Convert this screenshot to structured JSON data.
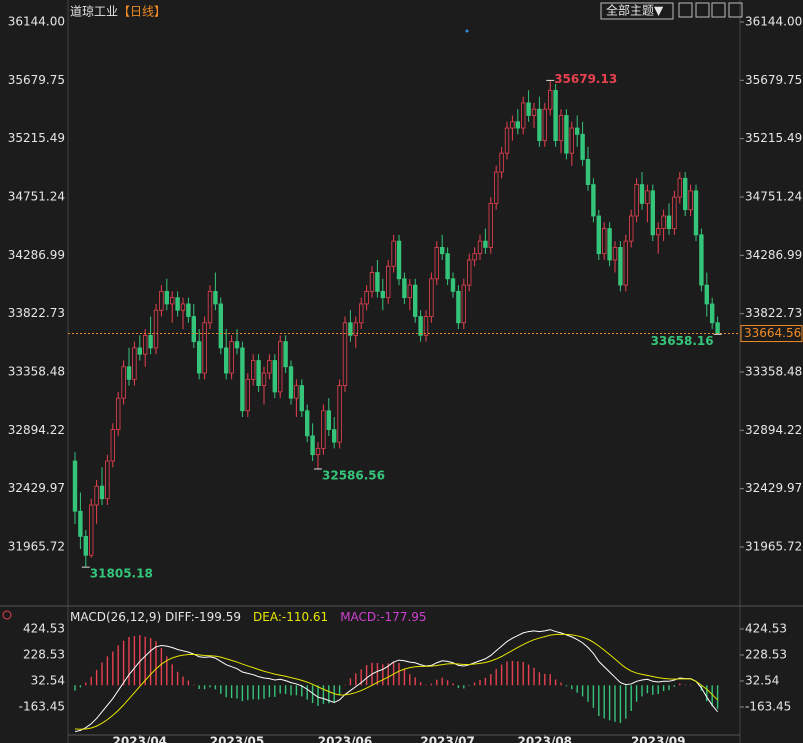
{
  "header": {
    "title": "道琼工业",
    "period": "【日线】",
    "theme_button": "全部主题▼"
  },
  "chart_data": [
    {
      "type": "candlestick",
      "up_color": "#e8414f",
      "down_color": "#35c57a",
      "candles": [
        [
          32650,
          32720,
          32150,
          32250
        ],
        [
          32250,
          32400,
          31950,
          32050
        ],
        [
          32050,
          32100,
          31805.18,
          31900
        ],
        [
          31900,
          32350,
          31880,
          32300
        ],
        [
          32300,
          32500,
          32150,
          32450
        ],
        [
          32450,
          32600,
          32300,
          32350
        ],
        [
          32350,
          32700,
          32300,
          32650
        ],
        [
          32650,
          32950,
          32600,
          32900
        ],
        [
          32900,
          33200,
          32850,
          33150
        ],
        [
          33150,
          33450,
          33100,
          33400
        ],
        [
          33400,
          33550,
          33250,
          33300
        ],
        [
          33300,
          33600,
          33250,
          33550
        ],
        [
          33550,
          33650,
          33450,
          33500
        ],
        [
          33500,
          33700,
          33400,
          33650
        ],
        [
          33650,
          33800,
          33500,
          33550
        ],
        [
          33550,
          33900,
          33500,
          33850
        ],
        [
          33850,
          34050,
          33800,
          34000
        ],
        [
          34000,
          34100,
          33850,
          33900
        ],
        [
          33900,
          34000,
          33750,
          33950
        ],
        [
          33950,
          34000,
          33800,
          33850
        ],
        [
          33850,
          33950,
          33700,
          33900
        ],
        [
          33900,
          33950,
          33750,
          33800
        ],
        [
          33800,
          33900,
          33550,
          33600
        ],
        [
          33600,
          33700,
          33300,
          33350
        ],
        [
          33350,
          33800,
          33300,
          33750
        ],
        [
          33750,
          34050,
          33700,
          34000
        ],
        [
          34000,
          34150,
          33850,
          33900
        ],
        [
          33900,
          33950,
          33500,
          33550
        ],
        [
          33550,
          33700,
          33300,
          33350
        ],
        [
          33350,
          33650,
          33300,
          33600
        ],
        [
          33600,
          33700,
          33500,
          33550
        ],
        [
          33550,
          33600,
          33000,
          33050
        ],
        [
          33050,
          33350,
          33000,
          33300
        ],
        [
          33300,
          33500,
          33250,
          33450
        ],
        [
          33450,
          33500,
          33200,
          33250
        ],
        [
          33250,
          33400,
          33100,
          33350
        ],
        [
          33350,
          33500,
          33300,
          33450
        ],
        [
          33450,
          33500,
          33150,
          33200
        ],
        [
          33200,
          33650,
          33150,
          33600
        ],
        [
          33600,
          33650,
          33350,
          33400
        ],
        [
          33400,
          33450,
          33100,
          33150
        ],
        [
          33150,
          33300,
          33000,
          33250
        ],
        [
          33250,
          33300,
          33000,
          33050
        ],
        [
          33050,
          33100,
          32800,
          32850
        ],
        [
          32850,
          32950,
          32650,
          32700
        ],
        [
          32700,
          32800,
          32586.56,
          32750
        ],
        [
          32750,
          33100,
          32700,
          33050
        ],
        [
          33050,
          33150,
          32850,
          32900
        ],
        [
          32900,
          33000,
          32750,
          32800
        ],
        [
          32800,
          33300,
          32750,
          33250
        ],
        [
          33250,
          33800,
          33200,
          33750
        ],
        [
          33750,
          33850,
          33600,
          33650
        ],
        [
          33650,
          33800,
          33550,
          33750
        ],
        [
          33750,
          33950,
          33700,
          33900
        ],
        [
          33900,
          34050,
          33850,
          34000
        ],
        [
          34000,
          34200,
          33950,
          34150
        ],
        [
          34150,
          34250,
          33950,
          34000
        ],
        [
          34000,
          34100,
          33850,
          33950
        ],
        [
          33950,
          34250,
          33900,
          34200
        ],
        [
          34200,
          34450,
          34150,
          34400
        ],
        [
          34400,
          34450,
          34050,
          34100
        ],
        [
          34100,
          34150,
          33900,
          33950
        ],
        [
          33950,
          34100,
          33850,
          34050
        ],
        [
          34050,
          34100,
          33750,
          33800
        ],
        [
          33800,
          33850,
          33600,
          33650
        ],
        [
          33650,
          33850,
          33600,
          33800
        ],
        [
          33800,
          34150,
          33750,
          34100
        ],
        [
          34100,
          34400,
          34050,
          34350
        ],
        [
          34350,
          34450,
          34250,
          34300
        ],
        [
          34300,
          34350,
          34050,
          34100
        ],
        [
          34100,
          34150,
          33950,
          34000
        ],
        [
          34000,
          34050,
          33700,
          33750
        ],
        [
          33750,
          34100,
          33700,
          34050
        ],
        [
          34050,
          34300,
          34000,
          34250
        ],
        [
          34250,
          34350,
          34200,
          34300
        ],
        [
          34300,
          34450,
          34250,
          34400
        ],
        [
          34400,
          34500,
          34300,
          34350
        ],
        [
          34350,
          34750,
          34300,
          34700
        ],
        [
          34700,
          35000,
          34650,
          34950
        ],
        [
          34950,
          35150,
          34900,
          35100
        ],
        [
          35100,
          35350,
          35050,
          35300
        ],
        [
          35300,
          35400,
          35200,
          35350
        ],
        [
          35350,
          35450,
          35250,
          35300
        ],
        [
          35300,
          35550,
          35250,
          35500
        ],
        [
          35500,
          35600,
          35350,
          35400
        ],
        [
          35400,
          35500,
          35300,
          35450
        ],
        [
          35450,
          35550,
          35150,
          35200
        ],
        [
          35200,
          35500,
          35150,
          35450
        ],
        [
          35450,
          35679.13,
          35400,
          35600
        ],
        [
          35600,
          35650,
          35150,
          35200
        ],
        [
          35200,
          35450,
          35100,
          35400
        ],
        [
          35400,
          35450,
          35050,
          35100
        ],
        [
          35100,
          35350,
          35000,
          35300
        ],
        [
          35300,
          35400,
          35150,
          35250
        ],
        [
          35250,
          35350,
          35000,
          35050
        ],
        [
          35050,
          35150,
          34800,
          34850
        ],
        [
          34850,
          34900,
          34550,
          34600
        ],
        [
          34600,
          34650,
          34250,
          34300
        ],
        [
          34300,
          34550,
          34250,
          34500
        ],
        [
          34500,
          34550,
          34200,
          34250
        ],
        [
          34250,
          34400,
          34150,
          34350
        ],
        [
          34350,
          34400,
          34000,
          34050
        ],
        [
          34050,
          34450,
          34000,
          34400
        ],
        [
          34400,
          34650,
          34350,
          34600
        ],
        [
          34600,
          34900,
          34550,
          34850
        ],
        [
          34850,
          34950,
          34650,
          34700
        ],
        [
          34700,
          34850,
          34550,
          34800
        ],
        [
          34800,
          34850,
          34400,
          34450
        ],
        [
          34450,
          34550,
          34300,
          34500
        ],
        [
          34500,
          34650,
          34400,
          34600
        ],
        [
          34600,
          34700,
          34450,
          34500
        ],
        [
          34500,
          34800,
          34450,
          34750
        ],
        [
          34750,
          34950,
          34700,
          34900
        ],
        [
          34900,
          34950,
          34600,
          34650
        ],
        [
          34650,
          34850,
          34600,
          34800
        ],
        [
          34800,
          34850,
          34400,
          34450
        ],
        [
          34450,
          34500,
          34000,
          34050
        ],
        [
          34050,
          34150,
          33800,
          33900
        ],
        [
          33900,
          33950,
          33700,
          33750
        ],
        [
          33750,
          33800,
          33658.16,
          33664.56
        ]
      ],
      "ylim": [
        31504,
        36319
      ],
      "yticks": [
        {
          "value": 36144,
          "label": "36144.00"
        },
        35679.75,
        35215.49,
        34751.24,
        34286.99,
        33822.73,
        33358.48,
        32894.22,
        32429.97,
        31965.72
      ],
      "xticks": [
        {
          "value": 12,
          "label": "2023/04"
        },
        {
          "value": 30,
          "label": "2023/05"
        },
        {
          "value": 50,
          "label": "2023/06"
        },
        {
          "value": 69,
          "label": "2023/07"
        },
        {
          "value": 87,
          "label": "2023/08"
        },
        {
          "value": 108,
          "label": "2023/09"
        }
      ]
    },
    {
      "type": "macd",
      "title": "MACD(26,12,9)",
      "ylim": [
        -375,
        530
      ],
      "yticks": [
        424.53,
        228.53,
        32.54,
        -163.45
      ],
      "series": [
        {
          "name": "DIFF:",
          "color": "#ffffff",
          "values": [
            -350,
            -340,
            -320,
            -290,
            -250,
            -200,
            -150,
            -100,
            -40,
            20,
            80,
            130,
            180,
            220,
            260,
            290,
            300,
            295,
            285,
            270,
            260,
            250,
            235,
            215,
            210,
            215,
            205,
            180,
            155,
            140,
            125,
            100,
            90,
            80,
            65,
            55,
            50,
            40,
            45,
            35,
            20,
            10,
            -5,
            -30,
            -60,
            -90,
            -100,
            -115,
            -130,
            -110,
            -70,
            -40,
            -10,
            20,
            55,
            85,
            105,
            120,
            145,
            175,
            190,
            185,
            175,
            170,
            155,
            145,
            150,
            170,
            185,
            180,
            170,
            150,
            145,
            155,
            170,
            185,
            200,
            225,
            260,
            295,
            330,
            355,
            375,
            395,
            405,
            410,
            405,
            410,
            420,
            405,
            395,
            380,
            365,
            345,
            320,
            285,
            240,
            180,
            140,
            100,
            60,
            20,
            5,
            10,
            30,
            40,
            45,
            30,
            25,
            30,
            30,
            40,
            55,
            50,
            50,
            30,
            -20,
            -90,
            -150,
            -199.59
          ]
        },
        {
          "name": "DEA:",
          "color": "#e6e600",
          "values": [
            -330,
            -332,
            -330,
            -322,
            -308,
            -286,
            -259,
            -227,
            -190,
            -148,
            -102,
            -56,
            -9,
            37,
            82,
            124,
            159,
            186,
            206,
            219,
            227,
            232,
            233,
            229,
            225,
            223,
            220,
            212,
            200,
            188,
            175,
            160,
            146,
            133,
            119,
            106,
            95,
            84,
            76,
            68,
            58,
            48,
            37,
            24,
            7,
            -12,
            -30,
            -47,
            -64,
            -73,
            -72,
            -66,
            -55,
            -40,
            -21,
            0,
            21,
            41,
            62,
            85,
            106,
            122,
            133,
            140,
            143,
            143,
            144,
            149,
            156,
            161,
            163,
            160,
            157,
            157,
            160,
            165,
            172,
            183,
            198,
            217,
            240,
            263,
            285,
            307,
            327,
            344,
            356,
            367,
            378,
            383,
            385,
            384,
            380,
            373,
            362,
            347,
            325,
            296,
            265,
            232,
            198,
            162,
            131,
            107,
            92,
            82,
            75,
            66,
            58,
            52,
            48,
            46,
            48,
            48,
            48,
            30,
            0,
            -30,
            -70,
            -110.61
          ]
        },
        {
          "name": "MACD:",
          "color": "#d040d0",
          "up_color": "#e8414f",
          "down_color": "#35c57a",
          "values": [
            -40,
            -16,
            20,
            64,
            116,
            172,
            218,
            254,
            300,
            336,
            364,
            372,
            378,
            366,
            356,
            332,
            282,
            218,
            158,
            102,
            66,
            36,
            4,
            -28,
            -30,
            -16,
            -30,
            -64,
            -90,
            -96,
            -100,
            -120,
            -112,
            -106,
            -108,
            -102,
            -90,
            -88,
            -62,
            -66,
            -76,
            -76,
            -84,
            -108,
            -134,
            -156,
            -140,
            -136,
            -132,
            -74,
            4,
            52,
            90,
            120,
            152,
            170,
            168,
            158,
            166,
            180,
            168,
            126,
            84,
            60,
            24,
            4,
            12,
            42,
            58,
            38,
            14,
            -20,
            -24,
            -4,
            20,
            40,
            56,
            84,
            124,
            156,
            180,
            184,
            180,
            176,
            156,
            132,
            98,
            86,
            84,
            44,
            20,
            -8,
            -30,
            -56,
            -84,
            -124,
            -170,
            -232,
            -250,
            -264,
            -276,
            -284,
            -252,
            -194,
            -124,
            -84,
            -60,
            -72,
            -66,
            -44,
            -36,
            -12,
            14,
            4,
            4,
            0,
            -40,
            -120,
            -160,
            -177.95
          ]
        }
      ]
    }
  ]
}
